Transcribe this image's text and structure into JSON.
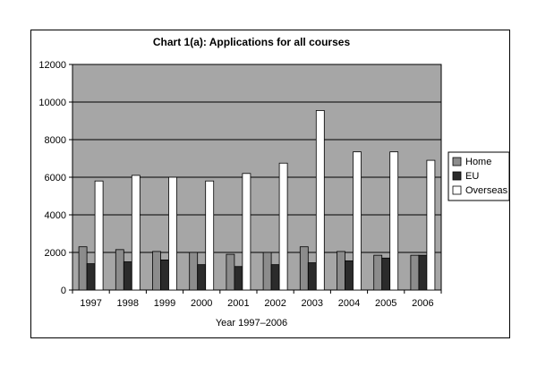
{
  "chart_data": {
    "type": "bar",
    "title": "Chart 1(a): Applications for all courses",
    "xlabel": "Year 1997–2006",
    "ylabel": "",
    "categories": [
      "1997",
      "1998",
      "1999",
      "2000",
      "2001",
      "2002",
      "2003",
      "2004",
      "2005",
      "2006"
    ],
    "series": [
      {
        "name": "Home",
        "color": "#8c8c8c",
        "values": [
          2300,
          2150,
          2050,
          2000,
          1900,
          2000,
          2300,
          2050,
          1850,
          1850
        ]
      },
      {
        "name": "EU",
        "color": "#2b2b2b",
        "values": [
          1400,
          1500,
          1600,
          1350,
          1250,
          1350,
          1450,
          1550,
          1700,
          1850
        ]
      },
      {
        "name": "Overseas",
        "color": "#ffffff",
        "values": [
          5800,
          6100,
          6000,
          5800,
          6200,
          6750,
          9550,
          7350,
          7350,
          6900
        ]
      }
    ],
    "ylim": [
      0,
      12000
    ],
    "yticks": [
      "0",
      "2000",
      "4000",
      "6000",
      "8000",
      "10000",
      "12000"
    ],
    "plot_background": "#a6a6a6",
    "grid": true,
    "legend_position": "right"
  }
}
